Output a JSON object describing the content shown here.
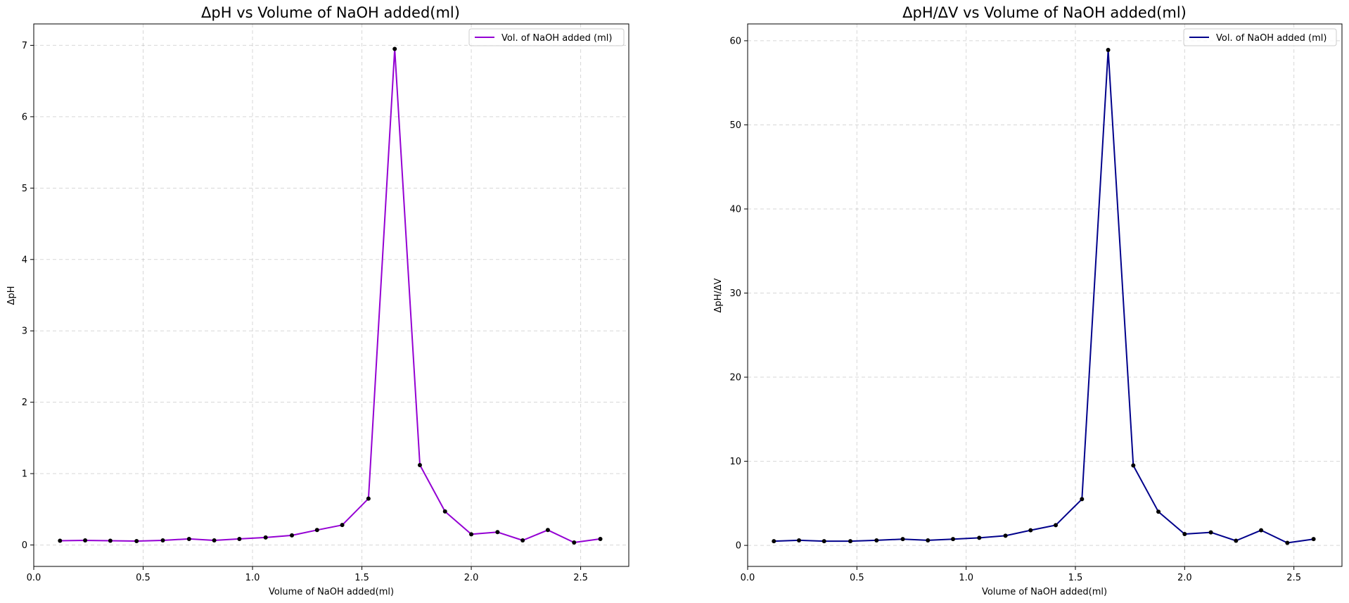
{
  "chart_data": [
    {
      "type": "line",
      "title": "ΔpH vs Volume of NaOH added(ml)",
      "xlabel": "Volume of NaOH added(ml)",
      "ylabel": "ΔpH",
      "xlim": [
        0.0,
        2.72
      ],
      "ylim": [
        -0.3,
        7.3
      ],
      "xticks": [
        0.0,
        0.5,
        1.0,
        1.5,
        2.0,
        2.5
      ],
      "xtick_labels": [
        "0.0",
        "0.5",
        "1.0",
        "1.5",
        "2.0",
        "2.5"
      ],
      "yticks": [
        0,
        1,
        2,
        3,
        4,
        5,
        6,
        7
      ],
      "ytick_labels": [
        "0",
        "1",
        "2",
        "3",
        "4",
        "5",
        "6",
        "7"
      ],
      "grid": true,
      "legend_position": "top-right",
      "series": [
        {
          "name": "Vol. of NaOH added (ml)",
          "color": "#9400d3",
          "marker_color": "#000000",
          "x": [
            0.12,
            0.235,
            0.35,
            0.47,
            0.59,
            0.71,
            0.825,
            0.94,
            1.06,
            1.18,
            1.295,
            1.41,
            1.53,
            1.65,
            1.765,
            1.88,
            2.0,
            2.12,
            2.235,
            2.35,
            2.47,
            2.59
          ],
          "y": [
            0.06,
            0.065,
            0.06,
            0.055,
            0.065,
            0.085,
            0.065,
            0.085,
            0.105,
            0.135,
            0.21,
            0.28,
            0.65,
            6.95,
            1.12,
            0.47,
            0.15,
            0.18,
            0.065,
            0.21,
            0.035,
            0.085
          ]
        }
      ]
    },
    {
      "type": "line",
      "title": "ΔpH/ΔV vs Volume of NaOH added(ml)",
      "xlabel": "Volume of NaOH added(ml)",
      "ylabel": "ΔpH/ΔV",
      "xlim": [
        0.0,
        2.72
      ],
      "ylim": [
        -2.5,
        62.0
      ],
      "xticks": [
        0.0,
        0.5,
        1.0,
        1.5,
        2.0,
        2.5
      ],
      "xtick_labels": [
        "0.0",
        "0.5",
        "1.0",
        "1.5",
        "2.0",
        "2.5"
      ],
      "yticks": [
        0,
        10,
        20,
        30,
        40,
        50,
        60
      ],
      "ytick_labels": [
        "0",
        "10",
        "20",
        "30",
        "40",
        "50",
        "60"
      ],
      "grid": true,
      "legend_position": "top-right",
      "series": [
        {
          "name": "Vol. of NaOH added (ml)",
          "color": "#00008b",
          "marker_color": "#000000",
          "x": [
            0.12,
            0.235,
            0.35,
            0.47,
            0.59,
            0.71,
            0.825,
            0.94,
            1.06,
            1.18,
            1.295,
            1.41,
            1.53,
            1.65,
            1.765,
            1.88,
            2.0,
            2.12,
            2.235,
            2.35,
            2.47,
            2.59
          ],
          "y": [
            0.5,
            0.6,
            0.5,
            0.5,
            0.6,
            0.75,
            0.6,
            0.75,
            0.9,
            1.15,
            1.8,
            2.4,
            5.5,
            58.9,
            9.5,
            4.0,
            1.35,
            1.55,
            0.55,
            1.8,
            0.3,
            0.75
          ]
        }
      ]
    }
  ]
}
